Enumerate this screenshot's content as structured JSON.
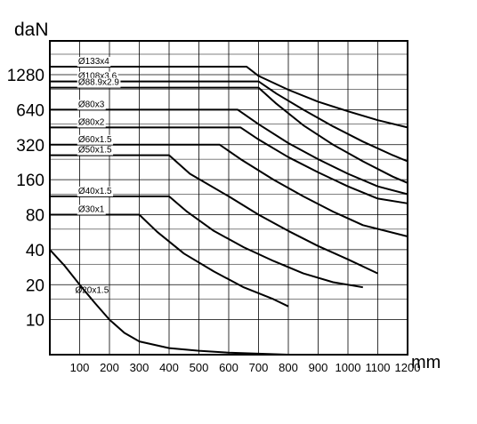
{
  "chart_data": {
    "type": "line",
    "title": "",
    "ylabel": "daN",
    "xlabel": "mm",
    "y_scale": "log2",
    "xlim": [
      0,
      1200
    ],
    "ylim": [
      5,
      2500
    ],
    "x_ticks": [
      100,
      200,
      300,
      400,
      500,
      600,
      700,
      800,
      900,
      1000,
      1100,
      1200
    ],
    "x_tick_labels": [
      "100",
      "200",
      "300",
      "400",
      "500",
      "600",
      "700",
      "800",
      "900",
      "1000",
      "1100",
      "1200"
    ],
    "y_ticks": [
      10,
      20,
      40,
      80,
      160,
      320,
      640,
      1280
    ],
    "y_tick_labels": [
      "10",
      "20",
      "40",
      "80",
      "160",
      "320",
      "640",
      "1280"
    ],
    "grid": true,
    "legend": "labels on lines",
    "series": [
      {
        "name": "Ø133x4",
        "x": [
          0,
          660,
          700,
          800,
          900,
          1000,
          1100,
          1200
        ],
        "y": [
          1500,
          1500,
          1250,
          950,
          750,
          620,
          520,
          450
        ]
      },
      {
        "name": "Ø108x3.6",
        "x": [
          0,
          700,
          760,
          850,
          950,
          1050,
          1150,
          1200
        ],
        "y": [
          1120,
          1120,
          880,
          640,
          460,
          340,
          260,
          230
        ]
      },
      {
        "name": "Ø88.9x2.9",
        "x": [
          0,
          700,
          760,
          850,
          950,
          1050,
          1150,
          1200
        ],
        "y": [
          990,
          990,
          720,
          470,
          320,
          230,
          170,
          150
        ]
      },
      {
        "name": "Ø80x3",
        "x": [
          0,
          630,
          700,
          800,
          900,
          1000,
          1100,
          1200
        ],
        "y": [
          640,
          640,
          480,
          330,
          240,
          180,
          140,
          120
        ]
      },
      {
        "name": "Ø80x2",
        "x": [
          0,
          640,
          700,
          800,
          900,
          1000,
          1100,
          1200
        ],
        "y": [
          450,
          450,
          355,
          250,
          185,
          140,
          110,
          100
        ]
      },
      {
        "name": "Ø60x1.5",
        "x": [
          0,
          570,
          640,
          750,
          850,
          950,
          1050,
          1200
        ],
        "y": [
          320,
          320,
          240,
          160,
          115,
          85,
          65,
          52
        ]
      },
      {
        "name": "Ø50x1.5",
        "x": [
          0,
          400,
          470,
          600,
          700,
          800,
          900,
          1000,
          1100
        ],
        "y": [
          260,
          260,
          180,
          115,
          80,
          58,
          43,
          33,
          25
        ]
      },
      {
        "name": "Ø40x1.5",
        "x": [
          0,
          400,
          460,
          550,
          650,
          750,
          850,
          950,
          1050
        ],
        "y": [
          115,
          115,
          85,
          58,
          42,
          32,
          25,
          21,
          19
        ]
      },
      {
        "name": "Ø30x1",
        "x": [
          0,
          300,
          360,
          450,
          550,
          650,
          750,
          800
        ],
        "y": [
          80,
          80,
          57,
          37,
          26,
          19,
          15,
          13
        ]
      },
      {
        "name": "Ø20x1.5",
        "x": [
          0,
          50,
          100,
          150,
          200,
          250,
          300,
          400,
          500,
          600,
          700,
          800
        ],
        "y": [
          40,
          29,
          20,
          14,
          10,
          7.7,
          6.5,
          5.7,
          5.4,
          5.2,
          5.1,
          5.0
        ]
      }
    ]
  }
}
